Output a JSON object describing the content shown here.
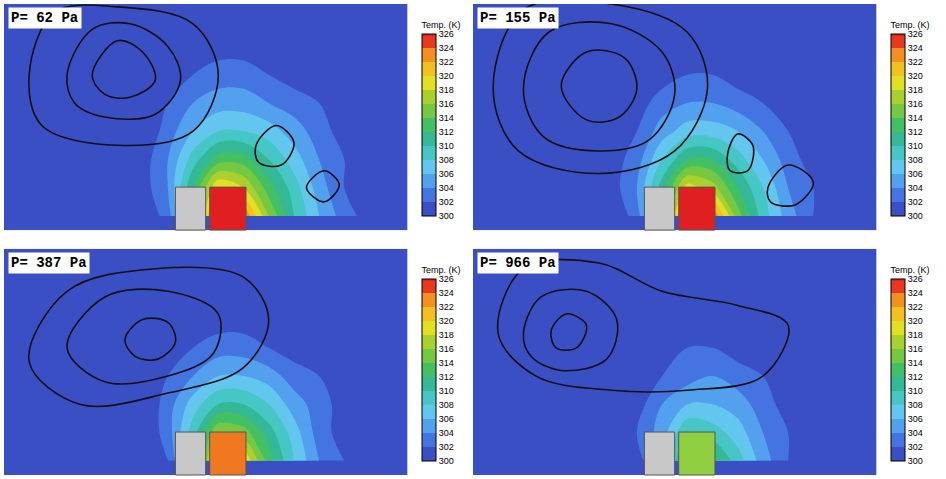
{
  "chart_data": [
    {
      "type": "contour",
      "title": "P= 62 Pa",
      "tick_labels": false,
      "color": "#e02020",
      "colorbar": {
        "title": "Temp. (K)",
        "range": [
          300,
          326
        ],
        "ticks": [
          300,
          302,
          304,
          306,
          308,
          310,
          312,
          314,
          316,
          318,
          320,
          322,
          324,
          326
        ]
      },
      "cells": [
        [
          300,
          300,
          300,
          300,
          300,
          300,
          303,
          312,
          326,
          324,
          316,
          310,
          306,
          303,
          301,
          300
        ],
        [
          300,
          300,
          300,
          300,
          300,
          301,
          304,
          312,
          320,
          318,
          313,
          309,
          305,
          302,
          300,
          300
        ],
        [
          300,
          300,
          300,
          300,
          300,
          301,
          304,
          309,
          313,
          313,
          310,
          307,
          304,
          302,
          300,
          300
        ],
        [
          300,
          300,
          300,
          300,
          300,
          300,
          303,
          306,
          308,
          308,
          307,
          305,
          303,
          301,
          300,
          300
        ],
        [
          300,
          300,
          300,
          300,
          300,
          300,
          302,
          304,
          305,
          305,
          304,
          303,
          302,
          300,
          300,
          300
        ],
        [
          300,
          300,
          300,
          300,
          300,
          300,
          301,
          302,
          303,
          303,
          302,
          301,
          300,
          300,
          300,
          300
        ],
        [
          300,
          300,
          300,
          300,
          300,
          300,
          300,
          300,
          301,
          301,
          300,
          300,
          300,
          300,
          300,
          300
        ],
        [
          300,
          300,
          300,
          300,
          300,
          300,
          300,
          300,
          300,
          300,
          300,
          300,
          300,
          300,
          300,
          300
        ]
      ],
      "contours": [
        {
          "x": [
            0.5,
            1.5,
            4,
            7,
            8,
            7,
            4,
            1,
            0.5
          ],
          "y": [
            5,
            7.2,
            7.4,
            6.8,
            5,
            3,
            2.5,
            3.2,
            5
          ]
        },
        {
          "x": [
            2,
            3,
            4.5,
            6,
            6.5,
            5.5,
            3.5,
            2.3,
            2
          ],
          "y": [
            5,
            6.6,
            6.8,
            6,
            4.8,
            3.6,
            3.5,
            4,
            5
          ]
        },
        {
          "x": [
            3,
            4,
            5,
            5.5,
            4.5,
            3.5,
            3
          ],
          "y": [
            5,
            6.2,
            5.8,
            4.8,
            4.2,
            4.3,
            5
          ]
        },
        {
          "x": [
            9.5,
            10.3,
            11,
            10.5,
            9.6,
            9.5
          ],
          "y": [
            2.5,
            3.2,
            2.6,
            1.8,
            1.9,
            2.5
          ]
        },
        {
          "x": [
            11.5,
            12.2,
            12.8,
            12.2,
            11.5
          ],
          "y": [
            1,
            1.6,
            1.1,
            0.5,
            1
          ]
        }
      ]
    },
    {
      "type": "contour",
      "title": "P= 155 Pa",
      "tick_labels": false,
      "color": "#e02020",
      "colorbar": {
        "title": "Temp. (K)",
        "range": [
          300,
          326
        ],
        "ticks": [
          300,
          302,
          304,
          306,
          308,
          310,
          312,
          314,
          316,
          318,
          320,
          322,
          324,
          326
        ]
      },
      "cells": [
        [
          300,
          300,
          300,
          300,
          300,
          300,
          303,
          311,
          326,
          324,
          315,
          309,
          305,
          302,
          301,
          300
        ],
        [
          300,
          300,
          300,
          300,
          300,
          301,
          304,
          311,
          319,
          317,
          312,
          308,
          304,
          302,
          300,
          300
        ],
        [
          300,
          300,
          300,
          300,
          300,
          301,
          303,
          308,
          312,
          312,
          309,
          306,
          303,
          301,
          300,
          300
        ],
        [
          300,
          300,
          300,
          300,
          300,
          300,
          302,
          305,
          307,
          307,
          306,
          304,
          302,
          301,
          300,
          300
        ],
        [
          300,
          300,
          300,
          300,
          300,
          300,
          301,
          303,
          304,
          304,
          303,
          302,
          301,
          300,
          300,
          300
        ],
        [
          300,
          300,
          300,
          300,
          300,
          300,
          300,
          301,
          302,
          302,
          301,
          300,
          300,
          300,
          300,
          300
        ],
        [
          300,
          300,
          300,
          300,
          300,
          300,
          300,
          300,
          300,
          300,
          300,
          300,
          300,
          300,
          300,
          300
        ],
        [
          300,
          300,
          300,
          300,
          300,
          300,
          300,
          300,
          300,
          300,
          300,
          300,
          300,
          300,
          300,
          300
        ]
      ],
      "contours": [
        {
          "x": [
            0.3,
            1.5,
            5,
            8,
            8.8,
            7.5,
            4.5,
            1.3,
            0.3
          ],
          "y": [
            4.5,
            7.3,
            7.5,
            6.5,
            4.5,
            2.3,
            1.5,
            2.3,
            4.5
          ]
        },
        {
          "x": [
            1.5,
            2.5,
            5,
            7,
            7.5,
            6.5,
            4.5,
            2.3,
            1.5
          ],
          "y": [
            4.5,
            6.5,
            6.8,
            5.8,
            4.3,
            2.7,
            2.3,
            2.8,
            4.5
          ]
        },
        {
          "x": [
            3,
            4,
            5.5,
            6,
            5.3,
            4,
            3
          ],
          "y": [
            4.6,
            5.8,
            5.6,
            4.5,
            3.5,
            3.4,
            4.6
          ]
        },
        {
          "x": [
            9.6,
            10,
            10.6,
            10.4,
            9.7,
            9.6
          ],
          "y": [
            2.2,
            2.9,
            2.5,
            1.6,
            1.6,
            2.2
          ]
        },
        {
          "x": [
            11.2,
            12,
            13,
            12.3,
            11.3,
            11.2
          ],
          "y": [
            1,
            1.8,
            1.2,
            0.4,
            0.5,
            1
          ]
        }
      ]
    },
    {
      "type": "contour",
      "title": "P= 387 Pa",
      "tick_labels": false,
      "color": "#f07820",
      "colorbar": {
        "title": "Temp. (K)",
        "range": [
          300,
          326
        ],
        "ticks": [
          300,
          302,
          304,
          306,
          308,
          310,
          312,
          314,
          316,
          318,
          320,
          322,
          324,
          326
        ]
      },
      "cells": [
        [
          300,
          300,
          300,
          300,
          300,
          300,
          302,
          309,
          322,
          320,
          313,
          308,
          304,
          302,
          300,
          300
        ],
        [
          300,
          300,
          300,
          300,
          300,
          300,
          303,
          309,
          316,
          315,
          311,
          307,
          303,
          301,
          300,
          300
        ],
        [
          300,
          300,
          300,
          300,
          300,
          300,
          303,
          307,
          310,
          310,
          308,
          305,
          303,
          301,
          300,
          300
        ],
        [
          300,
          300,
          300,
          300,
          300,
          300,
          302,
          304,
          306,
          306,
          305,
          303,
          302,
          300,
          300,
          300
        ],
        [
          300,
          300,
          300,
          300,
          300,
          300,
          301,
          302,
          303,
          303,
          302,
          301,
          300,
          300,
          300,
          300
        ],
        [
          300,
          300,
          300,
          300,
          300,
          300,
          300,
          300,
          301,
          301,
          300,
          300,
          300,
          300,
          300,
          300
        ],
        [
          300,
          300,
          300,
          300,
          300,
          300,
          300,
          300,
          300,
          300,
          300,
          300,
          300,
          300,
          300,
          300
        ],
        [
          300,
          300,
          300,
          300,
          300,
          300,
          300,
          300,
          300,
          300,
          300,
          300,
          300,
          300,
          300,
          300
        ]
      ],
      "contours": [
        {
          "x": [
            0.5,
            2,
            5.5,
            9,
            10,
            9,
            6,
            2.5,
            0.5
          ],
          "y": [
            3.5,
            6,
            6.8,
            6.5,
            5,
            3.3,
            2.4,
            2,
            3.5
          ]
        },
        {
          "x": [
            2,
            3.5,
            6,
            8,
            7.8,
            6,
            3.5,
            2
          ],
          "y": [
            4,
            5.8,
            6,
            5.2,
            3.8,
            3,
            2.8,
            4
          ]
        },
        {
          "x": [
            4.3,
            5,
            6,
            6.3,
            5.6,
            4.7,
            4.3
          ],
          "y": [
            4.3,
            5,
            4.9,
            4.2,
            3.6,
            3.7,
            4.3
          ]
        }
      ]
    },
    {
      "type": "contour",
      "title": "P= 966 Pa",
      "tick_labels": false,
      "color": "#90d040",
      "colorbar": {
        "title": "Temp. (K)",
        "range": [
          300,
          326
        ],
        "ticks": [
          300,
          302,
          304,
          306,
          308,
          310,
          312,
          314,
          316,
          318,
          320,
          322,
          324,
          326
        ]
      },
      "cells": [
        [
          300,
          300,
          300,
          300,
          300,
          300,
          301,
          305,
          314,
          313,
          309,
          305,
          302,
          301,
          300,
          300
        ],
        [
          300,
          300,
          300,
          300,
          300,
          300,
          302,
          305,
          310,
          309,
          307,
          304,
          302,
          300,
          300,
          300
        ],
        [
          300,
          300,
          300,
          300,
          300,
          300,
          301,
          304,
          306,
          306,
          305,
          303,
          301,
          300,
          300,
          300
        ],
        [
          300,
          300,
          300,
          300,
          300,
          300,
          301,
          302,
          303,
          304,
          303,
          302,
          300,
          300,
          300,
          300
        ],
        [
          300,
          300,
          300,
          300,
          300,
          300,
          300,
          301,
          302,
          302,
          301,
          300,
          300,
          300,
          300,
          300
        ],
        [
          300,
          300,
          300,
          300,
          300,
          300,
          300,
          300,
          300,
          300,
          300,
          300,
          300,
          300,
          300,
          300
        ],
        [
          300,
          300,
          300,
          300,
          300,
          300,
          300,
          300,
          300,
          300,
          300,
          300,
          300,
          300,
          300,
          300
        ],
        [
          300,
          300,
          300,
          300,
          300,
          300,
          300,
          300,
          300,
          300,
          300,
          300,
          300,
          300,
          300,
          300
        ]
      ],
      "contours": [
        {
          "x": [
            0.5,
            1.5,
            4.5,
            7,
            10,
            12,
            11,
            8,
            5,
            2,
            0.5
          ],
          "y": [
            4.5,
            6.8,
            7,
            6,
            5.5,
            4.8,
            3,
            2.5,
            2.5,
            3,
            4.5
          ]
        },
        {
          "x": [
            1.5,
            2.2,
            4,
            5.2,
            4.8,
            3,
            1.8,
            1.5
          ],
          "y": [
            4.5,
            5.8,
            6,
            5,
            3.6,
            3.2,
            3.7,
            4.5
          ]
        },
        {
          "x": [
            2.6,
            3.2,
            4,
            3.6,
            2.8,
            2.6
          ],
          "y": [
            4.6,
            5.2,
            4.8,
            4,
            4,
            4.6
          ]
        }
      ]
    }
  ]
}
